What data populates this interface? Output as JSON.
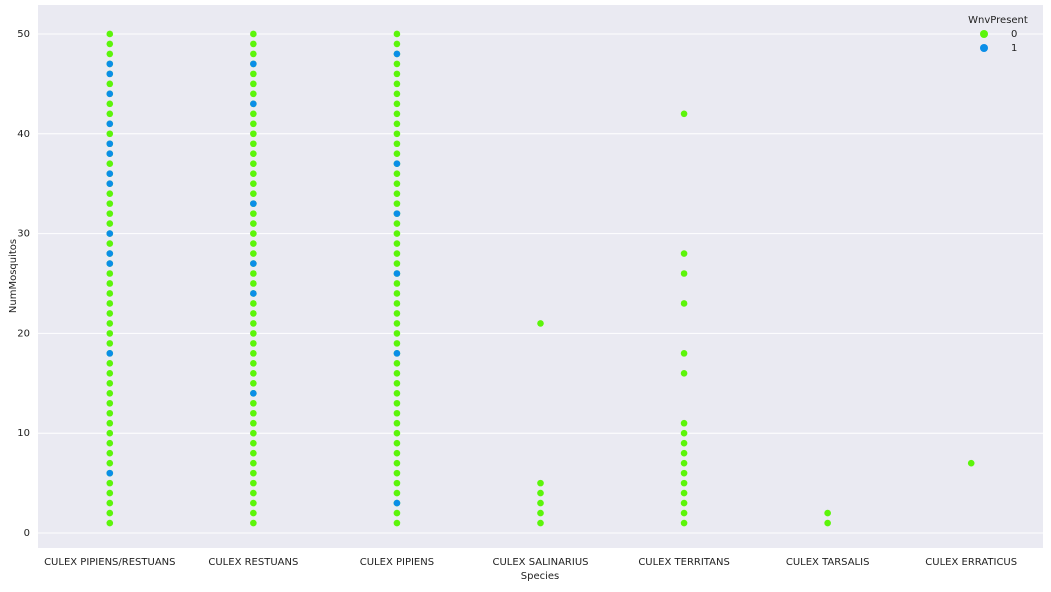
{
  "chart_data": {
    "type": "strip",
    "x_label": "Species",
    "y_label": "NumMosquitos",
    "categories": [
      "CULEX PIPIENS/RESTUANS",
      "CULEX RESTUANS",
      "CULEX PIPIENS",
      "CULEX SALINARIUS",
      "CULEX TERRITANS",
      "CULEX TARSALIS",
      "CULEX ERRATICUS"
    ],
    "legend_title": "WnvPresent",
    "legend_position": "upper right",
    "grid": true,
    "ylim": [
      -1.5,
      52.9
    ],
    "yticks": [
      0,
      10,
      20,
      30,
      40,
      50
    ],
    "series": [
      {
        "name": "0",
        "color": "#5cf50a",
        "values": [
          [
            1,
            2,
            3,
            4,
            5,
            6,
            7,
            8,
            9,
            10,
            11,
            12,
            13,
            14,
            15,
            16,
            17,
            18,
            19,
            20,
            21,
            22,
            23,
            24,
            25,
            26,
            27,
            28,
            29,
            30,
            31,
            32,
            33,
            34,
            35,
            36,
            37,
            38,
            39,
            40,
            41,
            42,
            43,
            44,
            45,
            46,
            47,
            48,
            49,
            50
          ],
          [
            1,
            2,
            3,
            4,
            5,
            6,
            7,
            8,
            9,
            10,
            11,
            12,
            13,
            14,
            15,
            16,
            17,
            18,
            19,
            20,
            21,
            22,
            23,
            24,
            25,
            26,
            27,
            28,
            29,
            30,
            31,
            32,
            33,
            34,
            35,
            36,
            37,
            38,
            39,
            40,
            41,
            42,
            43,
            44,
            45,
            46,
            47,
            48,
            49,
            50
          ],
          [
            1,
            2,
            3,
            4,
            5,
            6,
            7,
            8,
            9,
            10,
            11,
            12,
            13,
            14,
            15,
            16,
            17,
            18,
            19,
            20,
            21,
            22,
            23,
            24,
            25,
            26,
            27,
            28,
            29,
            30,
            31,
            32,
            33,
            34,
            35,
            36,
            37,
            38,
            39,
            40,
            41,
            42,
            43,
            44,
            45,
            46,
            47,
            48,
            49,
            50
          ],
          [
            1,
            2,
            3,
            4,
            5,
            21
          ],
          [
            1,
            2,
            3,
            4,
            5,
            6,
            7,
            8,
            9,
            10,
            11,
            16,
            18,
            23,
            26,
            28,
            42
          ],
          [
            1,
            2
          ],
          [
            7
          ]
        ]
      },
      {
        "name": "1",
        "color": "#0a8ee8",
        "values": [
          [
            6,
            18,
            27,
            28,
            30,
            35,
            36,
            38,
            39,
            41,
            44,
            46,
            47
          ],
          [
            14,
            24,
            27,
            33,
            43,
            47
          ],
          [
            3,
            18,
            26,
            32,
            37,
            48
          ],
          [],
          [],
          [],
          []
        ]
      }
    ]
  }
}
